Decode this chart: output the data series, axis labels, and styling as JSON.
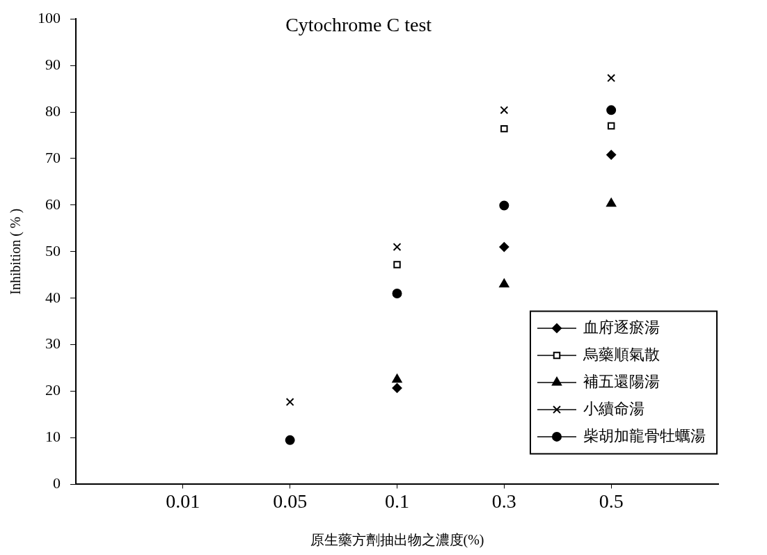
{
  "chart_data": {
    "type": "scatter",
    "title": "Cytochrome C test",
    "xlabel": "原生藥方劑抽出物之濃度(%)",
    "ylabel": "Inhibition ( % )",
    "categories": [
      "0.01",
      "0.05",
      "0.1",
      "0.3",
      "0.5"
    ],
    "ylim": [
      0,
      100
    ],
    "yticks": [
      0,
      10,
      20,
      30,
      40,
      50,
      60,
      70,
      80,
      90,
      100
    ],
    "grid": false,
    "legend": "bottom right",
    "series": [
      {
        "name": "血府逐瘀湯",
        "color": "#000000",
        "marker": "diamond",
        "values": [
          null,
          null,
          20.7,
          51,
          70.8
        ]
      },
      {
        "name": "烏藥順氣散",
        "color": "#000000",
        "marker": "square",
        "values": [
          null,
          null,
          47.2,
          76.4,
          77
        ]
      },
      {
        "name": "補五還陽湯",
        "color": "#000000",
        "marker": "triangle",
        "values": [
          null,
          null,
          22.5,
          43,
          60.3
        ]
      },
      {
        "name": "小續命湯",
        "color": "#000000",
        "marker": "cross",
        "values": [
          null,
          17.7,
          51,
          80.4,
          87.3
        ]
      },
      {
        "name": "柴胡加龍骨牡蠣湯",
        "color": "#000000",
        "marker": "circle",
        "values": [
          null,
          9.5,
          41,
          59.9,
          80.4
        ]
      }
    ]
  }
}
